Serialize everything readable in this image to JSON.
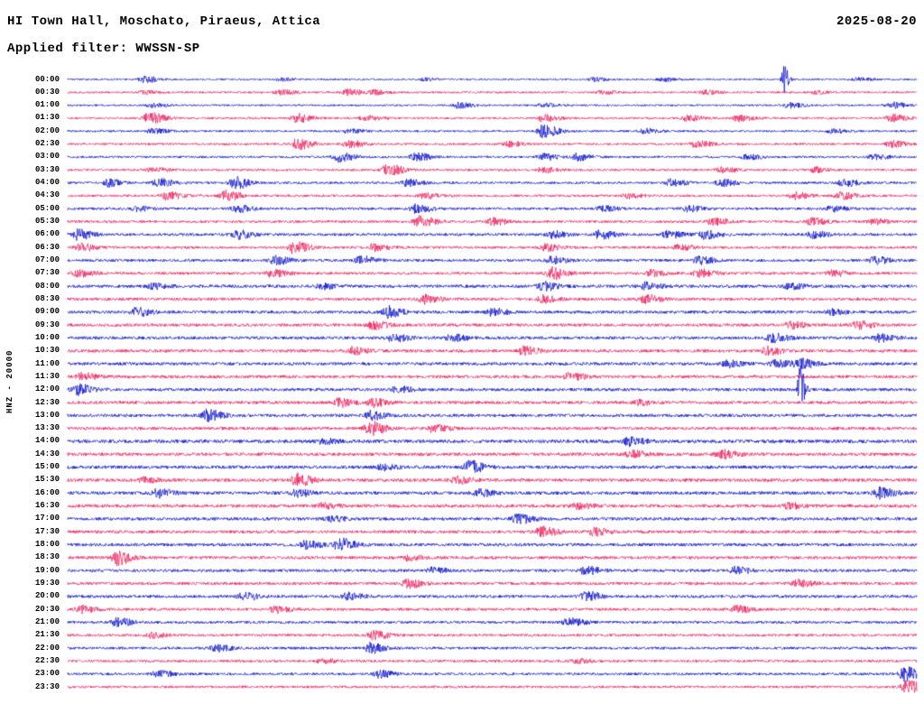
{
  "header": {
    "station_title": "HI Town Hall, Moschato, Piraeus, Attica",
    "date": "2025-08-20",
    "filter_label": "Applied filter: WWSSN-SP"
  },
  "y_axis": {
    "channel_label": "HNZ - 20000"
  },
  "colors": {
    "text": "#000000",
    "background": "#ffffff",
    "blue_trace": "#0008c8",
    "red_trace": "#ee1455"
  },
  "chart_data": {
    "type": "line",
    "kind": "helicorder-seismogram",
    "title": "HI Town Hall, Moschato, Piraeus, Attica",
    "date": "2025-08-20",
    "filter": "WWSSN-SP",
    "channel": "HNZ",
    "scale": 20000,
    "row_interval_minutes": 30,
    "legend_position": "none",
    "grid": false,
    "rows": [
      {
        "label": "00:00",
        "color": "blue",
        "base_amp": 0.9,
        "events": [
          [
            0.09,
            3.5
          ],
          [
            0.25,
            1.8
          ],
          [
            0.42,
            1.5
          ],
          [
            0.62,
            2.0
          ],
          [
            0.7,
            2.2
          ],
          [
            0.843,
            17
          ],
          [
            0.93,
            2.0
          ]
        ]
      },
      {
        "label": "00:30",
        "color": "red",
        "base_amp": 1.1,
        "events": [
          [
            0.09,
            1.8
          ],
          [
            0.25,
            2.5
          ],
          [
            0.33,
            3.2
          ],
          [
            0.36,
            2.4
          ],
          [
            0.63,
            2.0
          ],
          [
            0.75,
            2.2
          ],
          [
            0.88,
            1.8
          ]
        ]
      },
      {
        "label": "01:00",
        "color": "blue",
        "base_amp": 1.0,
        "events": [
          [
            0.1,
            2.2
          ],
          [
            0.46,
            3.2
          ],
          [
            0.56,
            2.0
          ],
          [
            0.85,
            2.8
          ],
          [
            0.97,
            3.2
          ]
        ]
      },
      {
        "label": "01:30",
        "color": "red",
        "base_amp": 1.2,
        "events": [
          [
            0.096,
            6.5
          ],
          [
            0.27,
            4.5
          ],
          [
            0.35,
            2.8
          ],
          [
            0.56,
            3.8
          ],
          [
            0.73,
            2.8
          ],
          [
            0.79,
            3.2
          ],
          [
            0.97,
            3.8
          ]
        ]
      },
      {
        "label": "02:00",
        "color": "blue",
        "base_amp": 1.1,
        "events": [
          [
            0.1,
            2.8
          ],
          [
            0.33,
            2.2
          ],
          [
            0.56,
            7.5
          ],
          [
            0.68,
            2.8
          ],
          [
            0.9,
            2.4
          ]
        ]
      },
      {
        "label": "02:30",
        "color": "red",
        "base_amp": 1.2,
        "events": [
          [
            0.27,
            6.5
          ],
          [
            0.33,
            4.5
          ],
          [
            0.52,
            2.8
          ],
          [
            0.74,
            3.8
          ],
          [
            0.97,
            3.4
          ]
        ]
      },
      {
        "label": "03:00",
        "color": "blue",
        "base_amp": 1.2,
        "events": [
          [
            0.32,
            5.5
          ],
          [
            0.41,
            4.5
          ],
          [
            0.56,
            3.8
          ],
          [
            0.6,
            3.8
          ],
          [
            0.8,
            2.5
          ],
          [
            0.95,
            2.8
          ]
        ]
      },
      {
        "label": "03:30",
        "color": "red",
        "base_amp": 1.2,
        "events": [
          [
            0.1,
            2.8
          ],
          [
            0.377,
            6.5
          ],
          [
            0.56,
            3.2
          ],
          [
            0.77,
            2.8
          ],
          [
            0.88,
            2.8
          ]
        ]
      },
      {
        "label": "04:00",
        "color": "blue",
        "base_amp": 1.3,
        "events": [
          [
            0.048,
            3.8
          ],
          [
            0.106,
            4.5
          ],
          [
            0.197,
            6.5
          ],
          [
            0.4,
            3.8
          ],
          [
            0.71,
            3.8
          ],
          [
            0.77,
            3.8
          ],
          [
            0.914,
            4.2
          ]
        ]
      },
      {
        "label": "04:30",
        "color": "red",
        "base_amp": 1.3,
        "events": [
          [
            0.117,
            4.5
          ],
          [
            0.186,
            5.5
          ],
          [
            0.42,
            2.8
          ],
          [
            0.66,
            2.5
          ],
          [
            0.856,
            3.8
          ],
          [
            0.91,
            4.2
          ]
        ]
      },
      {
        "label": "05:00",
        "color": "blue",
        "base_amp": 1.4,
        "events": [
          [
            0.08,
            2.8
          ],
          [
            0.2,
            3.8
          ],
          [
            0.41,
            4.5
          ],
          [
            0.63,
            2.8
          ],
          [
            0.73,
            3.2
          ],
          [
            0.9,
            2.8
          ]
        ]
      },
      {
        "label": "05:30",
        "color": "red",
        "base_amp": 1.4,
        "events": [
          [
            0.414,
            6.5
          ],
          [
            0.5,
            3.8
          ],
          [
            0.76,
            3.8
          ],
          [
            0.877,
            3.8
          ],
          [
            0.95,
            2.8
          ]
        ]
      },
      {
        "label": "06:00",
        "color": "blue",
        "base_amp": 1.5,
        "events": [
          [
            0.012,
            5.5
          ],
          [
            0.2,
            4.5
          ],
          [
            0.57,
            3.8
          ],
          [
            0.627,
            4.5
          ],
          [
            0.707,
            3.8
          ],
          [
            0.75,
            4.5
          ],
          [
            0.877,
            3.8
          ]
        ]
      },
      {
        "label": "06:30",
        "color": "red",
        "base_amp": 1.4,
        "events": [
          [
            0.016,
            3.8
          ],
          [
            0.266,
            6.5
          ],
          [
            0.36,
            3.8
          ],
          [
            0.563,
            3.8
          ],
          [
            0.72,
            2.8
          ]
        ]
      },
      {
        "label": "07:00",
        "color": "blue",
        "base_amp": 1.5,
        "events": [
          [
            0.244,
            4.5
          ],
          [
            0.345,
            4.5
          ],
          [
            0.57,
            3.8
          ],
          [
            0.744,
            4.2
          ],
          [
            0.951,
            3.8
          ]
        ]
      },
      {
        "label": "07:30",
        "color": "red",
        "base_amp": 1.5,
        "events": [
          [
            0.012,
            3.8
          ],
          [
            0.24,
            3.8
          ],
          [
            0.57,
            6.5
          ],
          [
            0.685,
            3.8
          ],
          [
            0.744,
            4.2
          ],
          [
            0.9,
            3.2
          ]
        ]
      },
      {
        "label": "08:00",
        "color": "blue",
        "base_amp": 1.7,
        "events": [
          [
            0.1,
            2.8
          ],
          [
            0.3,
            2.8
          ],
          [
            0.56,
            4.5
          ],
          [
            0.68,
            3.8
          ],
          [
            0.85,
            2.8
          ]
        ]
      },
      {
        "label": "08:30",
        "color": "red",
        "base_amp": 1.6,
        "events": [
          [
            0.42,
            4.5
          ],
          [
            0.56,
            3.8
          ],
          [
            0.68,
            4.5
          ]
        ]
      },
      {
        "label": "09:00",
        "color": "blue",
        "base_amp": 1.7,
        "events": [
          [
            0.08,
            4.5
          ],
          [
            0.377,
            6.5
          ],
          [
            0.5,
            3.8
          ],
          [
            0.9,
            2.8
          ]
        ]
      },
      {
        "label": "09:30",
        "color": "red",
        "base_amp": 1.7,
        "events": [
          [
            0.36,
            4.5
          ],
          [
            0.85,
            3.8
          ],
          [
            0.93,
            3.8
          ]
        ]
      },
      {
        "label": "10:00",
        "color": "blue",
        "base_amp": 1.7,
        "events": [
          [
            0.383,
            4.5
          ],
          [
            0.452,
            3.8
          ],
          [
            0.83,
            4.5
          ],
          [
            0.956,
            3.8
          ]
        ]
      },
      {
        "label": "10:30",
        "color": "red",
        "base_amp": 1.7,
        "events": [
          [
            0.335,
            3.8
          ],
          [
            0.537,
            4.5
          ],
          [
            0.824,
            4.2
          ]
        ]
      },
      {
        "label": "11:00",
        "color": "blue",
        "base_amp": 1.7,
        "events": [
          [
            0.776,
            3.8
          ],
          [
            0.834,
            3.8
          ],
          [
            0.862,
            5.5
          ]
        ]
      },
      {
        "label": "11:30",
        "color": "red",
        "base_amp": 1.7,
        "events": [
          [
            0.016,
            3.8
          ],
          [
            0.59,
            3.8
          ]
        ]
      },
      {
        "label": "12:00",
        "color": "blue",
        "base_amp": 1.7,
        "events": [
          [
            0.012,
            5.5
          ],
          [
            0.388,
            3.8
          ],
          [
            0.862,
            28
          ]
        ]
      },
      {
        "label": "12:30",
        "color": "red",
        "base_amp": 1.7,
        "events": [
          [
            0.32,
            4.5
          ],
          [
            0.36,
            4.5
          ],
          [
            0.67,
            2.8
          ]
        ]
      },
      {
        "label": "13:00",
        "color": "blue",
        "base_amp": 1.7,
        "events": [
          [
            0.165,
            6.5
          ],
          [
            0.356,
            4.5
          ]
        ]
      },
      {
        "label": "13:30",
        "color": "red",
        "base_amp": 1.7,
        "events": [
          [
            0.356,
            7.5
          ],
          [
            0.43,
            3.8
          ]
        ]
      },
      {
        "label": "14:00",
        "color": "blue",
        "base_amp": 1.9,
        "events": [
          [
            0.3,
            2.8
          ],
          [
            0.66,
            4.5
          ]
        ]
      },
      {
        "label": "14:30",
        "color": "red",
        "base_amp": 1.8,
        "events": [
          [
            0.664,
            3.8
          ],
          [
            0.77,
            4.5
          ]
        ]
      },
      {
        "label": "15:00",
        "color": "blue",
        "base_amp": 1.8,
        "events": [
          [
            0.37,
            2.8
          ],
          [
            0.473,
            6.5
          ]
        ]
      },
      {
        "label": "15:30",
        "color": "red",
        "base_amp": 1.8,
        "events": [
          [
            0.09,
            2.8
          ],
          [
            0.27,
            6.5
          ],
          [
            0.457,
            3.8
          ]
        ]
      },
      {
        "label": "16:00",
        "color": "blue",
        "base_amp": 1.8,
        "events": [
          [
            0.106,
            4.5
          ],
          [
            0.27,
            3.8
          ],
          [
            0.483,
            3.8
          ],
          [
            0.956,
            5.5
          ]
        ]
      },
      {
        "label": "16:30",
        "color": "red",
        "base_amp": 1.8,
        "events": [
          [
            0.3,
            2.8
          ],
          [
            0.6,
            2.8
          ],
          [
            0.85,
            2.8
          ]
        ]
      },
      {
        "label": "17:00",
        "color": "blue",
        "base_amp": 1.7,
        "events": [
          [
            0.31,
            2.8
          ],
          [
            0.53,
            5.5
          ]
        ]
      },
      {
        "label": "17:30",
        "color": "red",
        "base_amp": 1.7,
        "events": [
          [
            0.558,
            5.5
          ],
          [
            0.62,
            3.8
          ]
        ]
      },
      {
        "label": "18:00",
        "color": "blue",
        "base_amp": 1.7,
        "events": [
          [
            0.28,
            4.5
          ],
          [
            0.32,
            6.5
          ]
        ]
      },
      {
        "label": "18:30",
        "color": "red",
        "base_amp": 1.7,
        "events": [
          [
            0.058,
            7.5
          ],
          [
            0.4,
            2.8
          ]
        ]
      },
      {
        "label": "19:00",
        "color": "blue",
        "base_amp": 1.6,
        "events": [
          [
            0.43,
            3.2
          ],
          [
            0.61,
            4.5
          ],
          [
            0.787,
            3.8
          ]
        ]
      },
      {
        "label": "19:30",
        "color": "red",
        "base_amp": 1.6,
        "events": [
          [
            0.4,
            4.5
          ],
          [
            0.86,
            3.8
          ]
        ]
      },
      {
        "label": "20:00",
        "color": "blue",
        "base_amp": 1.6,
        "events": [
          [
            0.207,
            4.5
          ],
          [
            0.33,
            3.8
          ],
          [
            0.61,
            5.5
          ]
        ]
      },
      {
        "label": "20:30",
        "color": "red",
        "base_amp": 1.5,
        "events": [
          [
            0.016,
            3.8
          ],
          [
            0.244,
            3.8
          ],
          [
            0.787,
            4.2
          ]
        ]
      },
      {
        "label": "21:00",
        "color": "blue",
        "base_amp": 1.5,
        "events": [
          [
            0.058,
            4.5
          ],
          [
            0.59,
            4.5
          ]
        ]
      },
      {
        "label": "21:30",
        "color": "red",
        "base_amp": 1.4,
        "events": [
          [
            0.1,
            2.8
          ],
          [
            0.36,
            4.5
          ]
        ]
      },
      {
        "label": "22:00",
        "color": "blue",
        "base_amp": 1.4,
        "events": [
          [
            0.175,
            3.8
          ],
          [
            0.356,
            5.5
          ]
        ]
      },
      {
        "label": "22:30",
        "color": "red",
        "base_amp": 1.4,
        "events": [
          [
            0.3,
            2.2
          ],
          [
            0.6,
            2.2
          ]
        ]
      },
      {
        "label": "23:00",
        "color": "blue",
        "base_amp": 1.4,
        "events": [
          [
            0.106,
            3.8
          ],
          [
            0.367,
            3.8
          ],
          [
            0.985,
            7.5
          ]
        ]
      },
      {
        "label": "23:30",
        "color": "red",
        "base_amp": 1.3,
        "events": [
          [
            0.988,
            6.5
          ]
        ]
      }
    ]
  }
}
